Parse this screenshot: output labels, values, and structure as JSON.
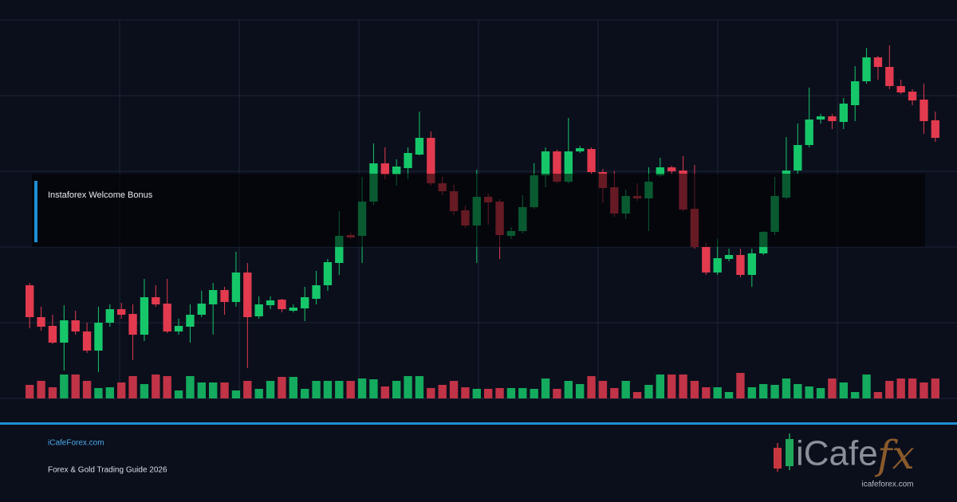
{
  "banner": {
    "label": "Instaforex Welcome Bonus"
  },
  "footer": {
    "site": "iCafeForex.com",
    "tagline": "Forex & Gold Trading Guide 2026"
  },
  "logo": {
    "text": "iCafe",
    "accent": "fx",
    "url": "icafeforex.com"
  },
  "chart_data": {
    "type": "candlestick",
    "open": [
      142,
      102,
      91,
      70,
      98,
      84,
      60,
      95,
      112,
      106,
      80,
      127,
      119,
      84,
      90,
      105,
      118,
      136,
      121,
      158,
      103,
      117,
      124,
      110,
      113,
      125,
      142,
      170,
      205,
      204,
      247,
      295,
      281,
      289,
      306,
      327,
      270,
      260,
      236,
      217,
      253,
      247,
      204,
      210,
      240,
      280,
      310,
      272,
      310,
      313,
      284,
      265,
      232,
      254,
      251,
      280,
      290,
      286,
      238,
      190,
      158,
      175,
      180,
      155,
      182,
      209,
      252,
      286,
      318,
      350,
      354,
      347,
      368,
      398,
      428,
      416,
      392,
      385,
      375,
      349
    ],
    "high": [
      145,
      115,
      105,
      117,
      110,
      95,
      115,
      118,
      120,
      118,
      150,
      142,
      150,
      100,
      118,
      135,
      145,
      140,
      184,
      170,
      128,
      128,
      125,
      118,
      140,
      160,
      175,
      235,
      208,
      278,
      320,
      315,
      300,
      315,
      360,
      335,
      278,
      268,
      242,
      287,
      257,
      250,
      215,
      255,
      295,
      315,
      312,
      352,
      317,
      315,
      288,
      285,
      262,
      270,
      290,
      302,
      292,
      304,
      293,
      195,
      200,
      188,
      188,
      188,
      210,
      278,
      328,
      345,
      390,
      357,
      357,
      377,
      417,
      440,
      430,
      443,
      400,
      388,
      395,
      360
    ],
    "low": [
      88,
      85,
      68,
      35,
      80,
      57,
      33,
      90,
      100,
      48,
      72,
      115,
      82,
      80,
      70,
      102,
      80,
      105,
      115,
      38,
      100,
      112,
      108,
      108,
      97,
      118,
      135,
      155,
      200,
      170,
      243,
      275,
      267,
      275,
      305,
      267,
      255,
      230,
      214,
      170,
      218,
      175,
      200,
      207,
      238,
      265,
      270,
      270,
      308,
      282,
      245,
      228,
      225,
      248,
      210,
      278,
      282,
      235,
      188,
      155,
      155,
      172,
      152,
      140,
      180,
      205,
      250,
      282,
      315,
      345,
      338,
      338,
      348,
      395,
      400,
      388,
      382,
      368,
      332,
      322
    ],
    "close": [
      102,
      90,
      70,
      98,
      84,
      60,
      95,
      112,
      105,
      80,
      127,
      118,
      84,
      91,
      105,
      119,
      136,
      121,
      158,
      102,
      118,
      123,
      112,
      114,
      127,
      142,
      171,
      204,
      202,
      247,
      295,
      281,
      291,
      308,
      327,
      270,
      260,
      235,
      217,
      253,
      246,
      205,
      210,
      240,
      280,
      310,
      272,
      310,
      314,
      284,
      264,
      232,
      254,
      251,
      272,
      290,
      285,
      237,
      190,
      158,
      176,
      180,
      155,
      182,
      209,
      254,
      286,
      318,
      350,
      354,
      348,
      370,
      398,
      428,
      416,
      392,
      384,
      374,
      348,
      327
    ],
    "volume": [
      17,
      22,
      14,
      30,
      30,
      22,
      13,
      14,
      20,
      28,
      18,
      30,
      28,
      10,
      28,
      20,
      20,
      20,
      10,
      22,
      12,
      22,
      27,
      27,
      12,
      22,
      22,
      22,
      22,
      25,
      24,
      15,
      22,
      28,
      28,
      13,
      17,
      22,
      14,
      12,
      12,
      13,
      13,
      13,
      12,
      25,
      12,
      22,
      18,
      28,
      22,
      13,
      22,
      8,
      17,
      30,
      30,
      30,
      22,
      14,
      14,
      8,
      32,
      14,
      18,
      17,
      25,
      18,
      15,
      13,
      25,
      20,
      8,
      30,
      8,
      22,
      25,
      25,
      20,
      25
    ],
    "ylim": [
      0,
      475
    ],
    "up_color": "#16c76a",
    "down_color": "#e23a4e"
  }
}
